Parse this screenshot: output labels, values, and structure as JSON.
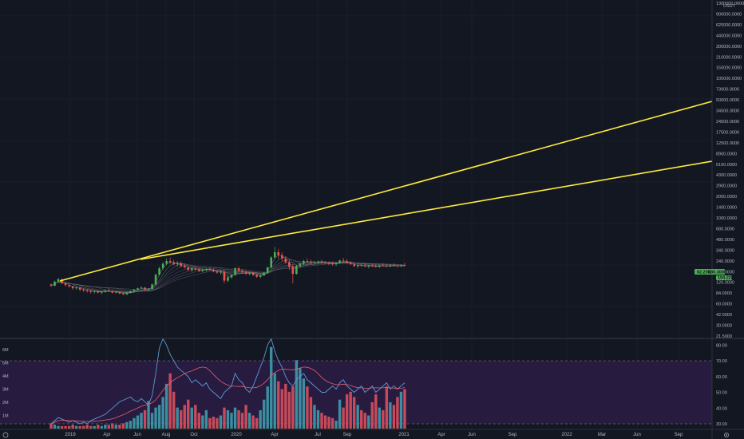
{
  "colors": {
    "background": "#131722",
    "grid": "#1e222d",
    "up": "#26a69a",
    "upBright": "#4caf50",
    "down": "#ef5350",
    "trendline": "#ffeb3b",
    "rsi_band": "#2a1c44",
    "rsi_line": "#5b9bd5",
    "ma_line": "#e06070",
    "vol_up": "#3d8ea0",
    "vol_down": "#c84a5a",
    "badge_bg": "#4caf50"
  },
  "chart_data": {
    "type": "candlestick",
    "price_axis": {
      "unit": "USDT",
      "scale": "log",
      "ticks": [
        "1300000.0000",
        "900000.0000",
        "620000.0000",
        "440000.0000",
        "300000.0000",
        "210000.0000",
        "150000.0000",
        "105000.0000",
        "73000.0000",
        "50000.0000",
        "34500.0000",
        "24500.0000",
        "17500.0000",
        "12500.0000",
        "8900.0000",
        "6100.0000",
        "4300.0000",
        "2900.0000",
        "2000.0000",
        "1400.0000",
        "1000.0000",
        "680.0000",
        "480.0000",
        "340.0000",
        "240.0000",
        "170.0000",
        "120.0000",
        "84.0000",
        "60.0000",
        "42.0000",
        "30.0000",
        "21.5000"
      ]
    },
    "price_badges": [
      {
        "label": "62.20K",
        "value": "180.3000"
      },
      {
        "label": "",
        "value": "194.22K"
      }
    ],
    "rsi_axis": {
      "ticks": [
        "80.00",
        "70.00",
        "60.00",
        "50.00",
        "40.00",
        "30.00"
      ],
      "upper": 70,
      "lower": 30
    },
    "volume_axis": {
      "ticks": [
        "6M",
        "5M",
        "4M",
        "3M",
        "2M",
        "1M"
      ]
    },
    "time_axis": {
      "labels": [
        "2019",
        "Apr",
        "Jun",
        "Aug",
        "Oct",
        "2020",
        "Apr",
        "Jul",
        "Sep",
        "2021",
        "Apr",
        "Jun",
        "Sep",
        "2022",
        "Mar",
        "Jun",
        "Sep"
      ]
    },
    "candles": [
      [
        96,
        100,
        88,
        92
      ],
      [
        92,
        110,
        90,
        106
      ],
      [
        106,
        120,
        102,
        116
      ],
      [
        116,
        118,
        98,
        100
      ],
      [
        100,
        104,
        90,
        94
      ],
      [
        94,
        98,
        86,
        90
      ],
      [
        90,
        92,
        80,
        84
      ],
      [
        84,
        90,
        80,
        86
      ],
      [
        86,
        88,
        76,
        80
      ],
      [
        80,
        84,
        74,
        78
      ],
      [
        78,
        82,
        72,
        76
      ],
      [
        76,
        80,
        70,
        74
      ],
      [
        74,
        78,
        70,
        76
      ],
      [
        76,
        78,
        70,
        72
      ],
      [
        72,
        76,
        68,
        74
      ],
      [
        74,
        80,
        72,
        78
      ],
      [
        78,
        82,
        74,
        76
      ],
      [
        76,
        78,
        70,
        72
      ],
      [
        72,
        76,
        70,
        74
      ],
      [
        74,
        76,
        68,
        70
      ],
      [
        70,
        72,
        66,
        68
      ],
      [
        68,
        74,
        66,
        72
      ],
      [
        72,
        78,
        70,
        76
      ],
      [
        76,
        82,
        74,
        80
      ],
      [
        80,
        86,
        78,
        84
      ],
      [
        84,
        90,
        82,
        86
      ],
      [
        86,
        88,
        78,
        80
      ],
      [
        80,
        84,
        76,
        82
      ],
      [
        82,
        100,
        80,
        96
      ],
      [
        96,
        140,
        94,
        136
      ],
      [
        136,
        180,
        130,
        170
      ],
      [
        170,
        210,
        160,
        200
      ],
      [
        200,
        240,
        190,
        220
      ],
      [
        220,
        250,
        200,
        210
      ],
      [
        210,
        230,
        190,
        196
      ],
      [
        196,
        220,
        180,
        204
      ],
      [
        204,
        216,
        176,
        184
      ],
      [
        184,
        200,
        168,
        176
      ],
      [
        176,
        184,
        156,
        160
      ],
      [
        160,
        176,
        150,
        170
      ],
      [
        170,
        180,
        156,
        164
      ],
      [
        164,
        172,
        150,
        154
      ],
      [
        154,
        168,
        146,
        160
      ],
      [
        160,
        172,
        150,
        166
      ],
      [
        166,
        176,
        156,
        160
      ],
      [
        160,
        168,
        148,
        152
      ],
      [
        152,
        160,
        140,
        146
      ],
      [
        146,
        156,
        136,
        150
      ],
      [
        150,
        160,
        100,
        110
      ],
      [
        110,
        130,
        104,
        124
      ],
      [
        124,
        140,
        118,
        134
      ],
      [
        134,
        176,
        130,
        170
      ],
      [
        170,
        180,
        150,
        156
      ],
      [
        156,
        164,
        140,
        150
      ],
      [
        150,
        160,
        136,
        140
      ],
      [
        140,
        150,
        132,
        146
      ],
      [
        146,
        150,
        130,
        134
      ],
      [
        134,
        140,
        122,
        126
      ],
      [
        126,
        136,
        120,
        132
      ],
      [
        132,
        150,
        130,
        146
      ],
      [
        146,
        180,
        140,
        176
      ],
      [
        176,
        260,
        170,
        250
      ],
      [
        250,
        360,
        240,
        300
      ],
      [
        300,
        340,
        240,
        270
      ],
      [
        270,
        300,
        220,
        240
      ],
      [
        240,
        260,
        200,
        210
      ],
      [
        210,
        230,
        160,
        180
      ],
      [
        180,
        200,
        100,
        140
      ],
      [
        140,
        190,
        136,
        186
      ],
      [
        186,
        210,
        176,
        200
      ],
      [
        200,
        230,
        190,
        220
      ],
      [
        220,
        240,
        200,
        214
      ],
      [
        214,
        230,
        196,
        206
      ],
      [
        206,
        220,
        194,
        210
      ],
      [
        210,
        224,
        200,
        216
      ],
      [
        216,
        230,
        204,
        210
      ],
      [
        210,
        220,
        198,
        204
      ],
      [
        204,
        216,
        190,
        200
      ],
      [
        200,
        214,
        186,
        196
      ],
      [
        196,
        210,
        184,
        204
      ],
      [
        204,
        230,
        200,
        224
      ],
      [
        224,
        246,
        210,
        220
      ],
      [
        220,
        236,
        200,
        206
      ],
      [
        206,
        220,
        190,
        196
      ],
      [
        196,
        206,
        176,
        184
      ],
      [
        184,
        196,
        172,
        190
      ],
      [
        190,
        200,
        178,
        186
      ],
      [
        186,
        196,
        176,
        182
      ],
      [
        182,
        194,
        170,
        186
      ],
      [
        186,
        200,
        178,
        184
      ],
      [
        184,
        196,
        174,
        180
      ],
      [
        180,
        192,
        172,
        188
      ],
      [
        188,
        204,
        180,
        186
      ],
      [
        186,
        198,
        176,
        182
      ],
      [
        182,
        198,
        176,
        190
      ],
      [
        190,
        204,
        182,
        186
      ],
      [
        186,
        196,
        178,
        184
      ],
      [
        184,
        196,
        176,
        190
      ],
      [
        190,
        206,
        182,
        186
      ]
    ],
    "volume": [
      0.4,
      0.3,
      0.2,
      0.2,
      0.2,
      0.2,
      0.3,
      0.2,
      0.2,
      0.2,
      0.3,
      0.2,
      0.2,
      0.3,
      0.2,
      0.3,
      0.3,
      0.4,
      0.3,
      0.3,
      0.4,
      0.5,
      0.6,
      0.8,
      1.0,
      1.2,
      1.4,
      2.1,
      1.2,
      1.6,
      1.8,
      2.4,
      3.4,
      4.2,
      2.8,
      1.6,
      1.4,
      1.8,
      2.2,
      1.6,
      1.8,
      1.2,
      1.0,
      1.4,
      0.8,
      0.9,
      0.8,
      1.0,
      1.6,
      1.4,
      1.2,
      1.6,
      1.4,
      1.2,
      1.8,
      1.2,
      1.0,
      0.8,
      1.4,
      2.2,
      3.2,
      6.2,
      4.2,
      3.6,
      3.0,
      3.4,
      2.8,
      3.2,
      5.2,
      4.6,
      3.8,
      3.2,
      2.4,
      1.8,
      1.4,
      1.2,
      1.0,
      0.9,
      0.8,
      0.6,
      2.2,
      1.6,
      2.6,
      2.8,
      2.4,
      1.8,
      1.4,
      1.2,
      1.0,
      2.0,
      2.6,
      1.6,
      1.4,
      3.2,
      2.0,
      1.8,
      2.4,
      2.8,
      3.0
    ],
    "rsi": [
      30,
      32,
      34,
      33,
      32,
      31,
      32,
      31,
      30,
      31,
      30,
      32,
      33,
      34,
      35,
      36,
      38,
      40,
      42,
      44,
      45,
      46,
      47,
      45,
      44,
      46,
      44,
      42,
      48,
      62,
      78,
      84,
      80,
      74,
      70,
      66,
      64,
      62,
      60,
      56,
      58,
      56,
      54,
      56,
      52,
      50,
      48,
      46,
      50,
      52,
      54,
      62,
      58,
      56,
      52,
      50,
      54,
      60,
      66,
      72,
      80,
      84,
      76,
      70,
      66,
      60,
      56,
      54,
      58,
      60,
      62,
      58,
      56,
      54,
      52,
      50,
      50,
      52,
      54,
      52,
      56,
      58,
      54,
      52,
      50,
      52,
      54,
      50,
      52,
      54,
      50,
      52,
      54,
      56,
      52,
      54,
      52,
      54,
      56
    ]
  }
}
